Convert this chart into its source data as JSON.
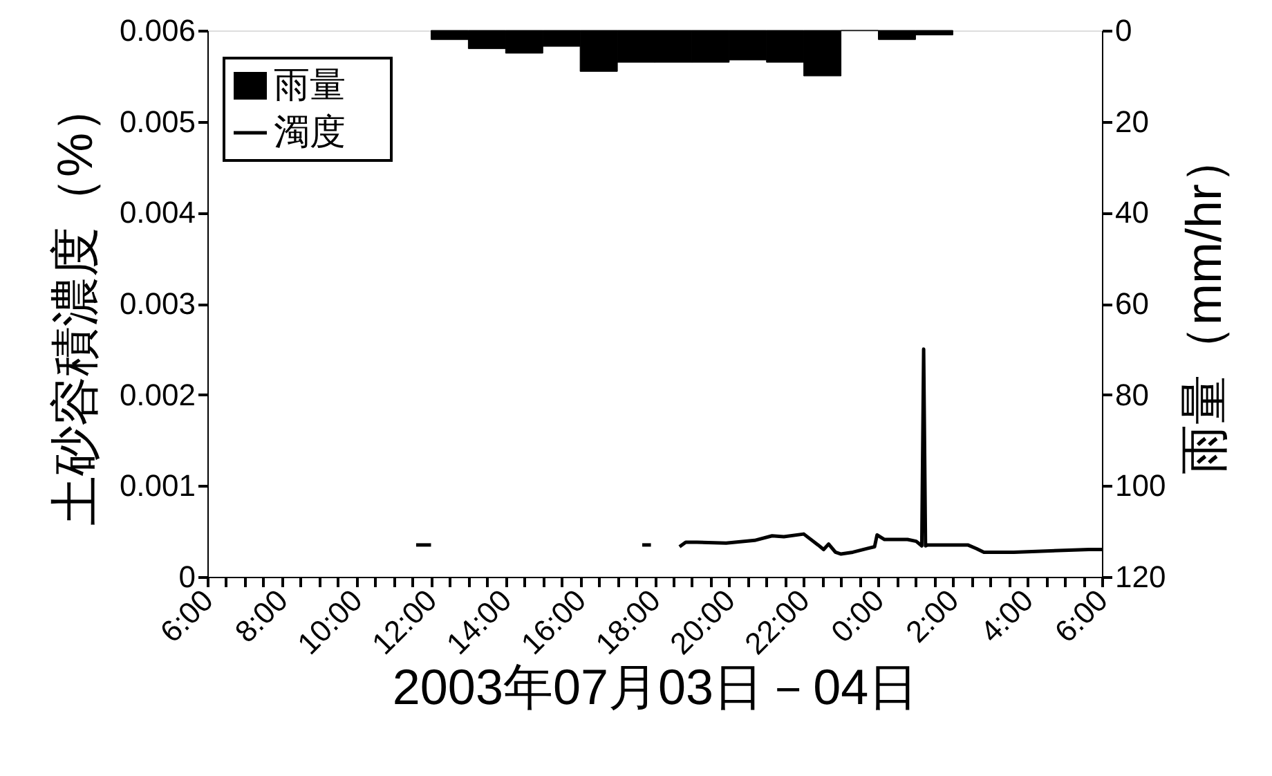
{
  "chart_data": {
    "type": "bar",
    "xlabel": "2003年07月03日－04日",
    "ylabel": "土砂容積濃度（%）",
    "y2label": "雨量（mm/hr）",
    "xlim": [
      "2003-07-03T06:00",
      "2003-07-04T06:00"
    ],
    "ylim": [
      0,
      0.006
    ],
    "y2lim": [
      120,
      0
    ],
    "xticks": [
      {
        "value": "2003-07-03T06:00",
        "label": "6:00"
      },
      {
        "value": "2003-07-03T06:30",
        "label": null
      },
      {
        "value": "2003-07-03T07:00",
        "label": null
      },
      {
        "value": "2003-07-03T07:30",
        "label": null
      },
      {
        "value": "2003-07-03T08:00",
        "label": "8:00"
      },
      {
        "value": "2003-07-03T08:30",
        "label": null
      },
      {
        "value": "2003-07-03T09:00",
        "label": null
      },
      {
        "value": "2003-07-03T09:30",
        "label": null
      },
      {
        "value": "2003-07-03T10:00",
        "label": "10:00"
      },
      {
        "value": "2003-07-03T10:30",
        "label": null
      },
      {
        "value": "2003-07-03T11:00",
        "label": null
      },
      {
        "value": "2003-07-03T11:30",
        "label": null
      },
      {
        "value": "2003-07-03T12:00",
        "label": "12:00"
      },
      {
        "value": "2003-07-03T12:30",
        "label": null
      },
      {
        "value": "2003-07-03T13:00",
        "label": null
      },
      {
        "value": "2003-07-03T13:30",
        "label": null
      },
      {
        "value": "2003-07-03T14:00",
        "label": "14:00"
      },
      {
        "value": "2003-07-03T14:30",
        "label": null
      },
      {
        "value": "2003-07-03T15:00",
        "label": null
      },
      {
        "value": "2003-07-03T15:30",
        "label": null
      },
      {
        "value": "2003-07-03T16:00",
        "label": "16:00"
      },
      {
        "value": "2003-07-03T16:30",
        "label": null
      },
      {
        "value": "2003-07-03T17:00",
        "label": null
      },
      {
        "value": "2003-07-03T17:30",
        "label": null
      },
      {
        "value": "2003-07-03T18:00",
        "label": "18:00"
      },
      {
        "value": "2003-07-03T18:30",
        "label": null
      },
      {
        "value": "2003-07-03T19:00",
        "label": null
      },
      {
        "value": "2003-07-03T19:30",
        "label": null
      },
      {
        "value": "2003-07-03T20:00",
        "label": "20:00"
      },
      {
        "value": "2003-07-03T20:30",
        "label": null
      },
      {
        "value": "2003-07-03T21:00",
        "label": null
      },
      {
        "value": "2003-07-03T21:30",
        "label": null
      },
      {
        "value": "2003-07-03T22:00",
        "label": "22:00"
      },
      {
        "value": "2003-07-03T22:30",
        "label": null
      },
      {
        "value": "2003-07-03T23:00",
        "label": null
      },
      {
        "value": "2003-07-03T23:30",
        "label": null
      },
      {
        "value": "2003-07-04T00:00",
        "label": "0:00"
      },
      {
        "value": "2003-07-04T00:30",
        "label": null
      },
      {
        "value": "2003-07-04T01:00",
        "label": null
      },
      {
        "value": "2003-07-04T01:30",
        "label": null
      },
      {
        "value": "2003-07-04T02:00",
        "label": "2:00"
      },
      {
        "value": "2003-07-04T02:30",
        "label": null
      },
      {
        "value": "2003-07-04T03:00",
        "label": null
      },
      {
        "value": "2003-07-04T03:30",
        "label": null
      },
      {
        "value": "2003-07-04T04:00",
        "label": "4:00"
      },
      {
        "value": "2003-07-04T04:30",
        "label": null
      },
      {
        "value": "2003-07-04T05:00",
        "label": null
      },
      {
        "value": "2003-07-04T05:30",
        "label": null
      },
      {
        "value": "2003-07-04T06:00",
        "label": "6:00"
      }
    ],
    "yticks": [
      0,
      0.001,
      0.002,
      0.003,
      0.004,
      0.005,
      0.006
    ],
    "y2ticks": [
      0,
      20,
      40,
      60,
      80,
      100,
      120
    ],
    "grid": false,
    "legend": "top left",
    "series": [
      {
        "name": "雨量",
        "axis": "y2",
        "color": "#000000",
        "x": [
          "2003-07-03T12:30",
          "2003-07-03T13:30",
          "2003-07-03T14:30",
          "2003-07-03T15:30",
          "2003-07-03T16:30",
          "2003-07-03T17:30",
          "2003-07-03T18:30",
          "2003-07-03T19:30",
          "2003-07-03T20:30",
          "2003-07-03T21:30",
          "2003-07-03T22:30",
          "2003-07-03T23:30",
          "2003-07-04T00:30",
          "2003-07-04T01:30"
        ],
        "values": [
          2,
          4,
          5,
          3.5,
          9,
          7,
          7,
          7,
          6.5,
          7,
          10,
          0,
          2,
          1
        ]
      },
      {
        "name": "濁度",
        "type": "line",
        "color": "#000000",
        "x": [
          "2003-07-03T11:36",
          "2003-07-03T12:00",
          "2003-07-03T12:30",
          "2003-07-03T17:40",
          "2003-07-03T17:54",
          "2003-07-03T18:12",
          "2003-07-03T18:40",
          "2003-07-03T18:50",
          "2003-07-03T19:08",
          "2003-07-03T19:55",
          "2003-07-03T20:41",
          "2003-07-03T21:09",
          "2003-07-03T21:28",
          "2003-07-03T22:00",
          "2003-07-03T22:23",
          "2003-07-03T22:32",
          "2003-07-03T22:40",
          "2003-07-03T22:51",
          "2003-07-03T23:00",
          "2003-07-03T23:19",
          "2003-07-03T23:42",
          "2003-07-03T23:54",
          "2003-07-03T23:58",
          "2003-07-04T00:10",
          "2003-07-04T00:47",
          "2003-07-04T01:01",
          "2003-07-04T01:10",
          "2003-07-04T01:13",
          "2003-07-04T01:16",
          "2003-07-04T01:19",
          "2003-07-04T01:38",
          "2003-07-04T02:05",
          "2003-07-04T02:24",
          "2003-07-04T02:38",
          "2003-07-04T02:50",
          "2003-07-04T03:38",
          "2003-07-04T05:39",
          "2003-07-04T06:00"
        ],
        "values": [
          0.00035,
          0.00035,
          null,
          0.00035,
          0.00035,
          null,
          0.00033,
          0.00038,
          0.00038,
          0.00037,
          0.0004,
          0.00045,
          0.00044,
          0.00047,
          0.00035,
          0.0003,
          0.00036,
          0.00027,
          0.00025,
          0.00027,
          0.00031,
          0.00033,
          0.00046,
          0.00041,
          0.00041,
          0.00039,
          0.00034,
          0.0025,
          0.00034,
          0.00035,
          0.00035,
          0.00035,
          0.00035,
          0.00031,
          0.00027,
          0.00027,
          0.0003,
          0.0003
        ]
      }
    ]
  }
}
